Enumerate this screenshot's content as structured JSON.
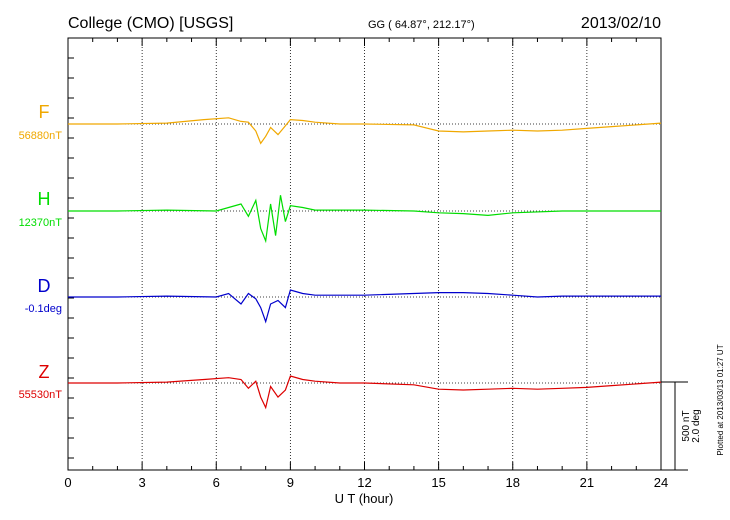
{
  "header": {
    "station": "College (CMO)  [USGS]",
    "coords": "GG ( 64.87°, 212.17°)",
    "date": "2013/02/10"
  },
  "scale": {
    "nt": "500 nT",
    "deg": "2.0 deg"
  },
  "plotted": "Plotted at 2013/03/13 01:27 UT",
  "chart_data": {
    "type": "line",
    "title": "College (CMO)  [USGS]",
    "xlabel": "U T (hour)",
    "ylabel": "",
    "xlim": [
      0,
      24
    ],
    "xticks": [
      "0",
      "3",
      "6",
      "9",
      "12",
      "15",
      "18",
      "21",
      "24"
    ],
    "scale_bar": {
      "nT": 500,
      "deg": 2.0
    },
    "series": [
      {
        "name": "F",
        "baseline_label": "56880nT",
        "color": "#f0a800",
        "x": [
          0,
          2,
          4,
          5.5,
          6.5,
          7,
          7.3,
          7.6,
          7.8,
          8.0,
          8.2,
          8.5,
          8.8,
          9.0,
          9.5,
          10,
          11,
          12,
          14,
          15,
          16,
          17,
          18,
          19,
          20,
          21,
          22,
          23,
          24
        ],
        "values": [
          0,
          0,
          5,
          25,
          35,
          15,
          10,
          -40,
          -110,
          -70,
          -20,
          -60,
          -10,
          25,
          20,
          10,
          0,
          0,
          -5,
          -40,
          -45,
          -40,
          -35,
          -40,
          -35,
          -25,
          -15,
          -5,
          5
        ]
      },
      {
        "name": "H",
        "baseline_label": "12370nT",
        "color": "#00dd00",
        "x": [
          0,
          2,
          4,
          6,
          6.5,
          7,
          7.3,
          7.6,
          7.8,
          8.0,
          8.2,
          8.4,
          8.6,
          8.8,
          9.0,
          9.5,
          10,
          12,
          14,
          15,
          16,
          17,
          18,
          20,
          22,
          24
        ],
        "values": [
          0,
          0,
          5,
          0,
          20,
          40,
          -30,
          60,
          -100,
          -170,
          40,
          -140,
          90,
          -60,
          30,
          20,
          5,
          5,
          0,
          -10,
          -15,
          -25,
          -10,
          0,
          0,
          0
        ]
      },
      {
        "name": "D",
        "baseline_label": "-0.1deg",
        "color": "#0000cc",
        "x": [
          0,
          2,
          4,
          6,
          6.5,
          7,
          7.3,
          7.6,
          7.8,
          8.0,
          8.2,
          8.5,
          8.8,
          9.0,
          9.5,
          10,
          12,
          15,
          16,
          17,
          18,
          19,
          20,
          22,
          24
        ],
        "values": [
          0,
          0,
          5,
          0,
          20,
          -40,
          20,
          -10,
          -60,
          -140,
          -40,
          -20,
          -60,
          40,
          20,
          10,
          10,
          25,
          25,
          20,
          10,
          0,
          5,
          5,
          5
        ]
      },
      {
        "name": "Z",
        "baseline_label": "55530nT",
        "color": "#dd0000",
        "x": [
          0,
          2,
          4,
          5.5,
          6.5,
          7,
          7.3,
          7.6,
          7.8,
          8.0,
          8.2,
          8.5,
          8.8,
          9.0,
          9.5,
          10,
          11,
          12,
          14,
          15,
          16,
          17,
          18,
          19,
          20,
          21,
          22,
          23,
          24
        ],
        "values": [
          0,
          0,
          5,
          20,
          30,
          20,
          -30,
          10,
          -80,
          -140,
          -20,
          -80,
          -40,
          40,
          20,
          10,
          0,
          0,
          -10,
          -35,
          -40,
          -35,
          -30,
          -35,
          -30,
          -25,
          -15,
          -5,
          5
        ]
      }
    ]
  }
}
